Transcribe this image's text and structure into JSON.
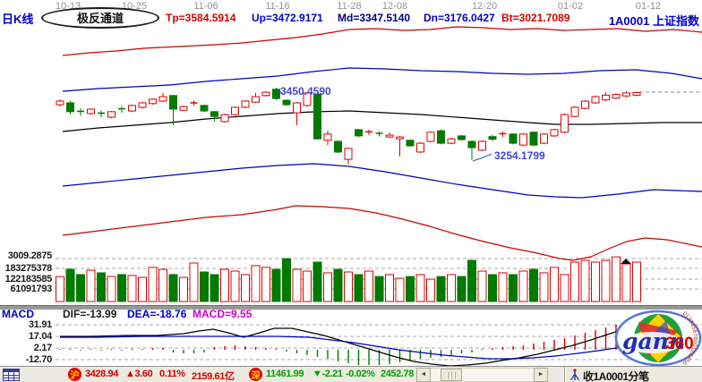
{
  "header": {
    "kline_label": "日K线",
    "channel_label": "极反通道",
    "dates": [
      "10-13",
      "10-25",
      "11-06",
      "11-16",
      "11-28",
      "12-08",
      "12-20",
      "01-02",
      "01-12"
    ],
    "values": [
      {
        "text": "Tp=3584.5914"
      },
      {
        "text": "Up=3472.9171"
      },
      {
        "text": "Md=3347.5140"
      },
      {
        "text": "Dn=3176.0427"
      },
      {
        "text": "Bt=3021.7089"
      }
    ],
    "symbol": "1A0001",
    "index_name": "上证指数"
  },
  "chart": {
    "labels": {
      "peak": "3450.4590",
      "low": "3254.1799",
      "grid": "3009.2875"
    },
    "volume_axis": [
      "183275378",
      "122183585",
      "61091793"
    ],
    "colors": {
      "up": "#dd0000",
      "down": "#007a00",
      "tp_bt": "#cc0000",
      "up_dn": "#0000bb",
      "md": "#000000"
    },
    "candles": [
      [
        3404,
        3414,
        3419,
        3399
      ],
      [
        3409,
        3385,
        3414,
        3377
      ],
      [
        3386,
        3384,
        3394,
        3374
      ],
      [
        3380,
        3392,
        3394,
        3377
      ],
      [
        3381,
        3379,
        3389,
        3370
      ],
      [
        3370,
        3385,
        3387,
        3367
      ],
      [
        3393,
        3391,
        3401,
        3382
      ],
      [
        3387,
        3402,
        3404,
        3384
      ],
      [
        3397,
        3409,
        3411,
        3394
      ],
      [
        3407,
        3419,
        3421,
        3404
      ],
      [
        3414,
        3426,
        3436,
        3411
      ],
      [
        3429,
        3392,
        3431,
        3348
      ],
      [
        3389,
        3399,
        3402,
        3387
      ],
      [
        3408,
        3409,
        3416,
        3401
      ],
      [
        3402,
        3387,
        3404,
        3384
      ],
      [
        3385,
        3372,
        3387,
        3358
      ],
      [
        3358,
        3377,
        3380,
        3355
      ],
      [
        3377,
        3397,
        3399,
        3374
      ],
      [
        3397,
        3414,
        3416,
        3394
      ],
      [
        3411,
        3426,
        3436,
        3409
      ],
      [
        3429,
        3438,
        3441,
        3426
      ],
      [
        3446,
        3421,
        3450.46,
        3416
      ],
      [
        3416,
        3404,
        3419,
        3401
      ],
      [
        3382,
        3409,
        3411,
        3348
      ],
      [
        3402,
        3436,
        3438,
        3399
      ],
      [
        3433,
        3311,
        3436,
        3309
      ],
      [
        3307,
        3324,
        3333,
        3294
      ],
      [
        3304,
        3275,
        3307,
        3272
      ],
      [
        3255,
        3285,
        3287,
        3241
      ],
      [
        3336,
        3319,
        3338,
        3316
      ],
      [
        3328,
        3330,
        3336,
        3321
      ],
      [
        3326,
        3324,
        3331,
        3317
      ],
      [
        3316,
        3321,
        3329,
        3314
      ],
      [
        3311,
        3316,
        3319,
        3263
      ],
      [
        3307,
        3292,
        3309,
        3289
      ],
      [
        3275,
        3299,
        3302,
        3272
      ],
      [
        3304,
        3329,
        3331,
        3301
      ],
      [
        3333,
        3299,
        3336,
        3296
      ],
      [
        3299,
        3311,
        3314,
        3296
      ],
      [
        3319,
        3309,
        3321,
        3306
      ],
      [
        3304,
        3287,
        3307,
        3254.18
      ],
      [
        3280,
        3304,
        3307,
        3277
      ],
      [
        3317,
        3310,
        3322,
        3305
      ],
      [
        3323,
        3325,
        3331,
        3316
      ],
      [
        3324,
        3299,
        3326,
        3296
      ],
      [
        3294,
        3324,
        3326,
        3291
      ],
      [
        3329,
        3294,
        3331,
        3291
      ],
      [
        3299,
        3324,
        3326,
        3296
      ],
      [
        3319,
        3336,
        3338,
        3316
      ],
      [
        3329,
        3377,
        3380,
        3326
      ],
      [
        3372,
        3397,
        3400,
        3369
      ],
      [
        3394,
        3414,
        3417,
        3391
      ],
      [
        3409,
        3426,
        3429,
        3406
      ],
      [
        3417,
        3430,
        3438,
        3414
      ],
      [
        3422,
        3432,
        3435,
        3419
      ],
      [
        3428,
        3436,
        3441,
        3425
      ],
      [
        3430,
        3437,
        3440,
        3427
      ]
    ],
    "volumes": [
      142000000,
      183000000,
      153000000,
      178000000,
      163000000,
      142000000,
      153000000,
      148000000,
      137000000,
      194000000,
      183000000,
      153000000,
      137000000,
      219000000,
      168000000,
      153000000,
      183000000,
      173000000,
      153000000,
      204000000,
      194000000,
      183000000,
      244000000,
      183000000,
      173000000,
      224000000,
      163000000,
      183000000,
      168000000,
      153000000,
      173000000,
      142000000,
      153000000,
      132000000,
      142000000,
      153000000,
      127000000,
      142000000,
      153000000,
      142000000,
      234000000,
      173000000,
      153000000,
      163000000,
      153000000,
      173000000,
      183000000,
      163000000,
      194000000,
      153000000,
      224000000,
      234000000,
      224000000,
      234000000,
      254000000,
      214000000,
      224000000
    ],
    "channels": {
      "tp": [
        [
          70,
          62
        ],
        [
          100,
          59
        ],
        [
          130,
          57
        ],
        [
          160,
          54
        ],
        [
          200,
          52
        ],
        [
          240,
          50
        ],
        [
          270,
          48
        ],
        [
          300,
          45
        ],
        [
          330,
          42
        ],
        [
          360,
          38
        ],
        [
          390,
          33
        ],
        [
          420,
          32
        ],
        [
          450,
          34
        ],
        [
          480,
          33
        ],
        [
          510,
          30
        ],
        [
          540,
          31
        ],
        [
          570,
          33
        ],
        [
          600,
          32
        ],
        [
          630,
          34
        ],
        [
          660,
          33
        ],
        [
          690,
          32
        ],
        [
          720,
          35
        ],
        [
          752,
          33
        ],
        [
          784,
          36
        ]
      ],
      "up": [
        [
          70,
          102
        ],
        [
          110,
          99
        ],
        [
          150,
          97
        ],
        [
          190,
          95
        ],
        [
          230,
          91
        ],
        [
          270,
          88
        ],
        [
          310,
          85
        ],
        [
          350,
          80
        ],
        [
          390,
          76
        ],
        [
          430,
          77
        ],
        [
          470,
          79
        ],
        [
          510,
          80
        ],
        [
          550,
          82
        ],
        [
          590,
          83
        ],
        [
          630,
          82
        ],
        [
          670,
          79
        ],
        [
          710,
          78
        ],
        [
          750,
          82
        ],
        [
          784,
          88
        ]
      ],
      "md": [
        [
          70,
          147
        ],
        [
          110,
          143
        ],
        [
          150,
          140
        ],
        [
          190,
          137
        ],
        [
          230,
          133
        ],
        [
          270,
          130
        ],
        [
          310,
          127
        ],
        [
          350,
          125
        ],
        [
          390,
          124
        ],
        [
          430,
          126
        ],
        [
          470,
          128
        ],
        [
          510,
          131
        ],
        [
          550,
          134
        ],
        [
          590,
          137
        ],
        [
          620,
          139
        ],
        [
          660,
          139
        ],
        [
          700,
          138
        ],
        [
          740,
          137
        ],
        [
          784,
          137
        ]
      ],
      "dn": [
        [
          70,
          208
        ],
        [
          110,
          204
        ],
        [
          150,
          200
        ],
        [
          190,
          196
        ],
        [
          230,
          192
        ],
        [
          270,
          188
        ],
        [
          310,
          185
        ],
        [
          350,
          183
        ],
        [
          390,
          186
        ],
        [
          430,
          192
        ],
        [
          470,
          199
        ],
        [
          510,
          206
        ],
        [
          550,
          212
        ],
        [
          590,
          218
        ],
        [
          620,
          220
        ],
        [
          650,
          221
        ],
        [
          690,
          217
        ],
        [
          730,
          212
        ],
        [
          784,
          214
        ]
      ],
      "bt": [
        [
          70,
          263
        ],
        [
          110,
          258
        ],
        [
          150,
          253
        ],
        [
          190,
          248
        ],
        [
          230,
          243
        ],
        [
          270,
          240
        ],
        [
          310,
          234
        ],
        [
          330,
          230
        ],
        [
          360,
          231
        ],
        [
          390,
          233
        ],
        [
          420,
          238
        ],
        [
          450,
          245
        ],
        [
          480,
          253
        ],
        [
          510,
          262
        ],
        [
          540,
          270
        ],
        [
          570,
          277
        ],
        [
          600,
          283
        ],
        [
          625,
          289
        ],
        [
          640,
          291
        ],
        [
          660,
          287
        ],
        [
          680,
          278
        ],
        [
          700,
          270
        ],
        [
          720,
          266
        ],
        [
          745,
          268
        ],
        [
          784,
          276
        ]
      ]
    },
    "leaders": {
      "peak": [
        [
          309,
          99
        ],
        [
          316,
          105
        ]
      ],
      "low": [
        [
          528,
          180
        ],
        [
          537,
          177
        ],
        [
          549,
          172
        ]
      ]
    }
  },
  "macd": {
    "title": "MACD",
    "dif_label": "DIF=-13.99",
    "dea_label": "DEA=-18.76",
    "macd_label": "MACD=9.55",
    "scale_labels": [
      "31.91",
      "17.04",
      "2.17",
      "-12.70"
    ],
    "histogram": [
      1,
      1,
      -1,
      1,
      -1,
      1,
      -1,
      1,
      1,
      2,
      2,
      -3,
      -4,
      -4,
      -3,
      3,
      4,
      5,
      4,
      3,
      2,
      1,
      -2,
      -4,
      -6,
      -8,
      -10,
      -13,
      -15,
      -17,
      -17,
      -17,
      -16,
      -14,
      -12,
      -10,
      -9,
      -8,
      -6,
      -4,
      -3,
      1,
      2,
      3,
      4,
      5,
      7,
      9,
      11,
      13,
      16,
      19,
      22,
      25,
      28,
      31,
      34
    ],
    "dif_points": [
      [
        67,
        376
      ],
      [
        100,
        376
      ],
      [
        140,
        375
      ],
      [
        175,
        375
      ],
      [
        205,
        373
      ],
      [
        222,
        370
      ],
      [
        238,
        368
      ],
      [
        255,
        372
      ],
      [
        272,
        377
      ],
      [
        290,
        372
      ],
      [
        306,
        367
      ],
      [
        326,
        367
      ],
      [
        344,
        371
      ],
      [
        362,
        375
      ],
      [
        382,
        381
      ],
      [
        402,
        387
      ],
      [
        422,
        393
      ],
      [
        442,
        399
      ],
      [
        462,
        404
      ],
      [
        482,
        407
      ],
      [
        502,
        409
      ],
      [
        522,
        408
      ],
      [
        542,
        406
      ],
      [
        560,
        403
      ],
      [
        580,
        400
      ],
      [
        600,
        396
      ],
      [
        620,
        391
      ],
      [
        640,
        386
      ],
      [
        660,
        380
      ],
      [
        678,
        374
      ],
      [
        694,
        369
      ],
      [
        706,
        366
      ]
    ],
    "dea_points": [
      [
        67,
        377
      ],
      [
        110,
        377
      ],
      [
        160,
        376
      ],
      [
        210,
        376
      ],
      [
        260,
        376
      ],
      [
        310,
        376
      ],
      [
        345,
        377
      ],
      [
        370,
        380
      ],
      [
        395,
        383
      ],
      [
        420,
        387
      ],
      [
        445,
        391
      ],
      [
        470,
        394
      ],
      [
        495,
        397
      ],
      [
        520,
        399
      ],
      [
        545,
        401
      ],
      [
        570,
        401
      ],
      [
        595,
        400
      ],
      [
        620,
        398
      ],
      [
        645,
        395
      ],
      [
        668,
        392
      ],
      [
        688,
        389
      ],
      [
        706,
        387
      ]
    ]
  },
  "status": {
    "sh_badge": "沪",
    "sh_price": "3428.94",
    "sh_change": "▲3.60",
    "sh_pct": "0.11%",
    "sh_amount": "2159.61亿",
    "sz_badge": "深",
    "sz_price": "11461.99",
    "sz_change": "▼-2.21",
    "sz_pct": "-0.02%",
    "sz_amount": "2452.78",
    "receiving": "收1A0001分笔"
  },
  "logo": {
    "gann": "gann",
    "num": "360",
    "digits": "0123456789012345678901234"
  }
}
